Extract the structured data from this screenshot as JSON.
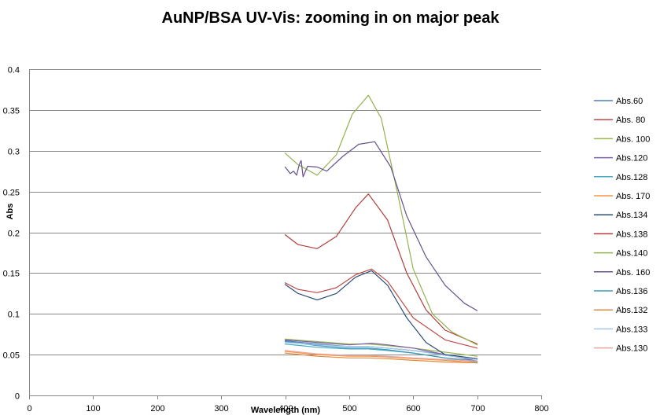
{
  "chart_data": {
    "type": "line",
    "title": "AuNP/BSA UV-Vis: zooming in on major peak",
    "xlabel": "Wavelength (nm)",
    "ylabel": "Abs",
    "xlim": [
      0,
      800
    ],
    "ylim": [
      0,
      0.4
    ],
    "x_ticks": [
      0,
      100,
      200,
      300,
      400,
      500,
      600,
      700,
      800
    ],
    "y_ticks": [
      0,
      0.05,
      0.1,
      0.15,
      0.2,
      0.25,
      0.3,
      0.35,
      0.4
    ],
    "grid": "horizontal",
    "legend_position": "right",
    "series": [
      {
        "name": "Abs.60",
        "color": "#4a7ebb",
        "x": [
          400,
          450,
          500,
          530,
          560,
          600,
          650,
          700
        ],
        "y": [
          0.067,
          0.063,
          0.06,
          0.06,
          0.058,
          0.055,
          0.05,
          0.045
        ]
      },
      {
        "name": "Abs. 80",
        "color": "#be4b48",
        "x": [
          400,
          420,
          450,
          480,
          510,
          535,
          560,
          600,
          650,
          700
        ],
        "y": [
          0.138,
          0.13,
          0.126,
          0.132,
          0.148,
          0.155,
          0.14,
          0.095,
          0.068,
          0.058
        ]
      },
      {
        "name": "Abs. 100",
        "color": "#98b954",
        "x": [
          400,
          450,
          500,
          530,
          560,
          600,
          650,
          700
        ],
        "y": [
          0.069,
          0.066,
          0.063,
          0.063,
          0.061,
          0.058,
          0.053,
          0.048
        ]
      },
      {
        "name": "Abs.120",
        "color": "#7d60a0",
        "x": [
          400,
          450,
          500,
          535,
          560,
          600,
          650,
          700
        ],
        "y": [
          0.068,
          0.065,
          0.062,
          0.064,
          0.062,
          0.058,
          0.05,
          0.042
        ]
      },
      {
        "name": "Abs.128",
        "color": "#46aac5",
        "x": [
          400,
          450,
          500,
          530,
          560,
          600,
          650,
          700
        ],
        "y": [
          0.063,
          0.059,
          0.057,
          0.057,
          0.055,
          0.052,
          0.046,
          0.041
        ]
      },
      {
        "name": "Abs. 170",
        "color": "#f79646",
        "x": [
          400,
          450,
          500,
          530,
          560,
          600,
          650,
          700
        ],
        "y": [
          0.054,
          0.05,
          0.048,
          0.048,
          0.047,
          0.045,
          0.043,
          0.04
        ]
      },
      {
        "name": "Abs.134",
        "color": "#2c4d75",
        "x": [
          400,
          420,
          450,
          480,
          510,
          535,
          560,
          590,
          620,
          650,
          700
        ],
        "y": [
          0.136,
          0.125,
          0.117,
          0.125,
          0.145,
          0.153,
          0.135,
          0.095,
          0.065,
          0.05,
          0.045
        ]
      },
      {
        "name": "Abs.138",
        "color": "#b03c39",
        "x": [
          400,
          420,
          450,
          480,
          510,
          530,
          560,
          590,
          620,
          650,
          700
        ],
        "y": [
          0.197,
          0.185,
          0.18,
          0.195,
          0.23,
          0.247,
          0.215,
          0.15,
          0.105,
          0.08,
          0.063
        ]
      },
      {
        "name": "Abs.140",
        "color": "#93b24d",
        "x": [
          400,
          420,
          450,
          480,
          505,
          530,
          550,
          575,
          600,
          630,
          660,
          700
        ],
        "y": [
          0.297,
          0.283,
          0.27,
          0.295,
          0.345,
          0.368,
          0.34,
          0.25,
          0.155,
          0.1,
          0.078,
          0.062
        ]
      },
      {
        "name": "Abs. 160",
        "color": "#65508f",
        "x": [
          400,
          408,
          413,
          418,
          422,
          425,
          428,
          435,
          450,
          465,
          490,
          515,
          540,
          565,
          590,
          620,
          650,
          680,
          700
        ],
        "y": [
          0.28,
          0.272,
          0.275,
          0.27,
          0.283,
          0.288,
          0.268,
          0.281,
          0.28,
          0.275,
          0.293,
          0.308,
          0.311,
          0.28,
          0.22,
          0.17,
          0.135,
          0.113,
          0.104
        ]
      },
      {
        "name": "Abs.136",
        "color": "#3d9ab8",
        "x": [
          400,
          450,
          500,
          530,
          560,
          600,
          650,
          700
        ],
        "y": [
          0.066,
          0.061,
          0.058,
          0.058,
          0.056,
          0.052,
          0.046,
          0.042
        ]
      },
      {
        "name": "Abs.132",
        "color": "#e48a3b",
        "x": [
          400,
          450,
          500,
          530,
          560,
          600,
          650,
          700
        ],
        "y": [
          0.052,
          0.048,
          0.046,
          0.046,
          0.045,
          0.043,
          0.041,
          0.04
        ]
      },
      {
        "name": "Abs.133",
        "color": "#a4c6e8",
        "x": [
          400,
          450,
          500,
          530,
          560,
          600,
          650,
          700
        ],
        "y": [
          0.065,
          0.062,
          0.06,
          0.06,
          0.058,
          0.055,
          0.049,
          0.044
        ]
      },
      {
        "name": "Abs.130",
        "color": "#e6a7a5",
        "x": [
          400,
          450,
          500,
          530,
          560,
          600,
          650,
          700
        ],
        "y": [
          0.055,
          0.051,
          0.049,
          0.049,
          0.048,
          0.046,
          0.044,
          0.042
        ]
      }
    ]
  }
}
